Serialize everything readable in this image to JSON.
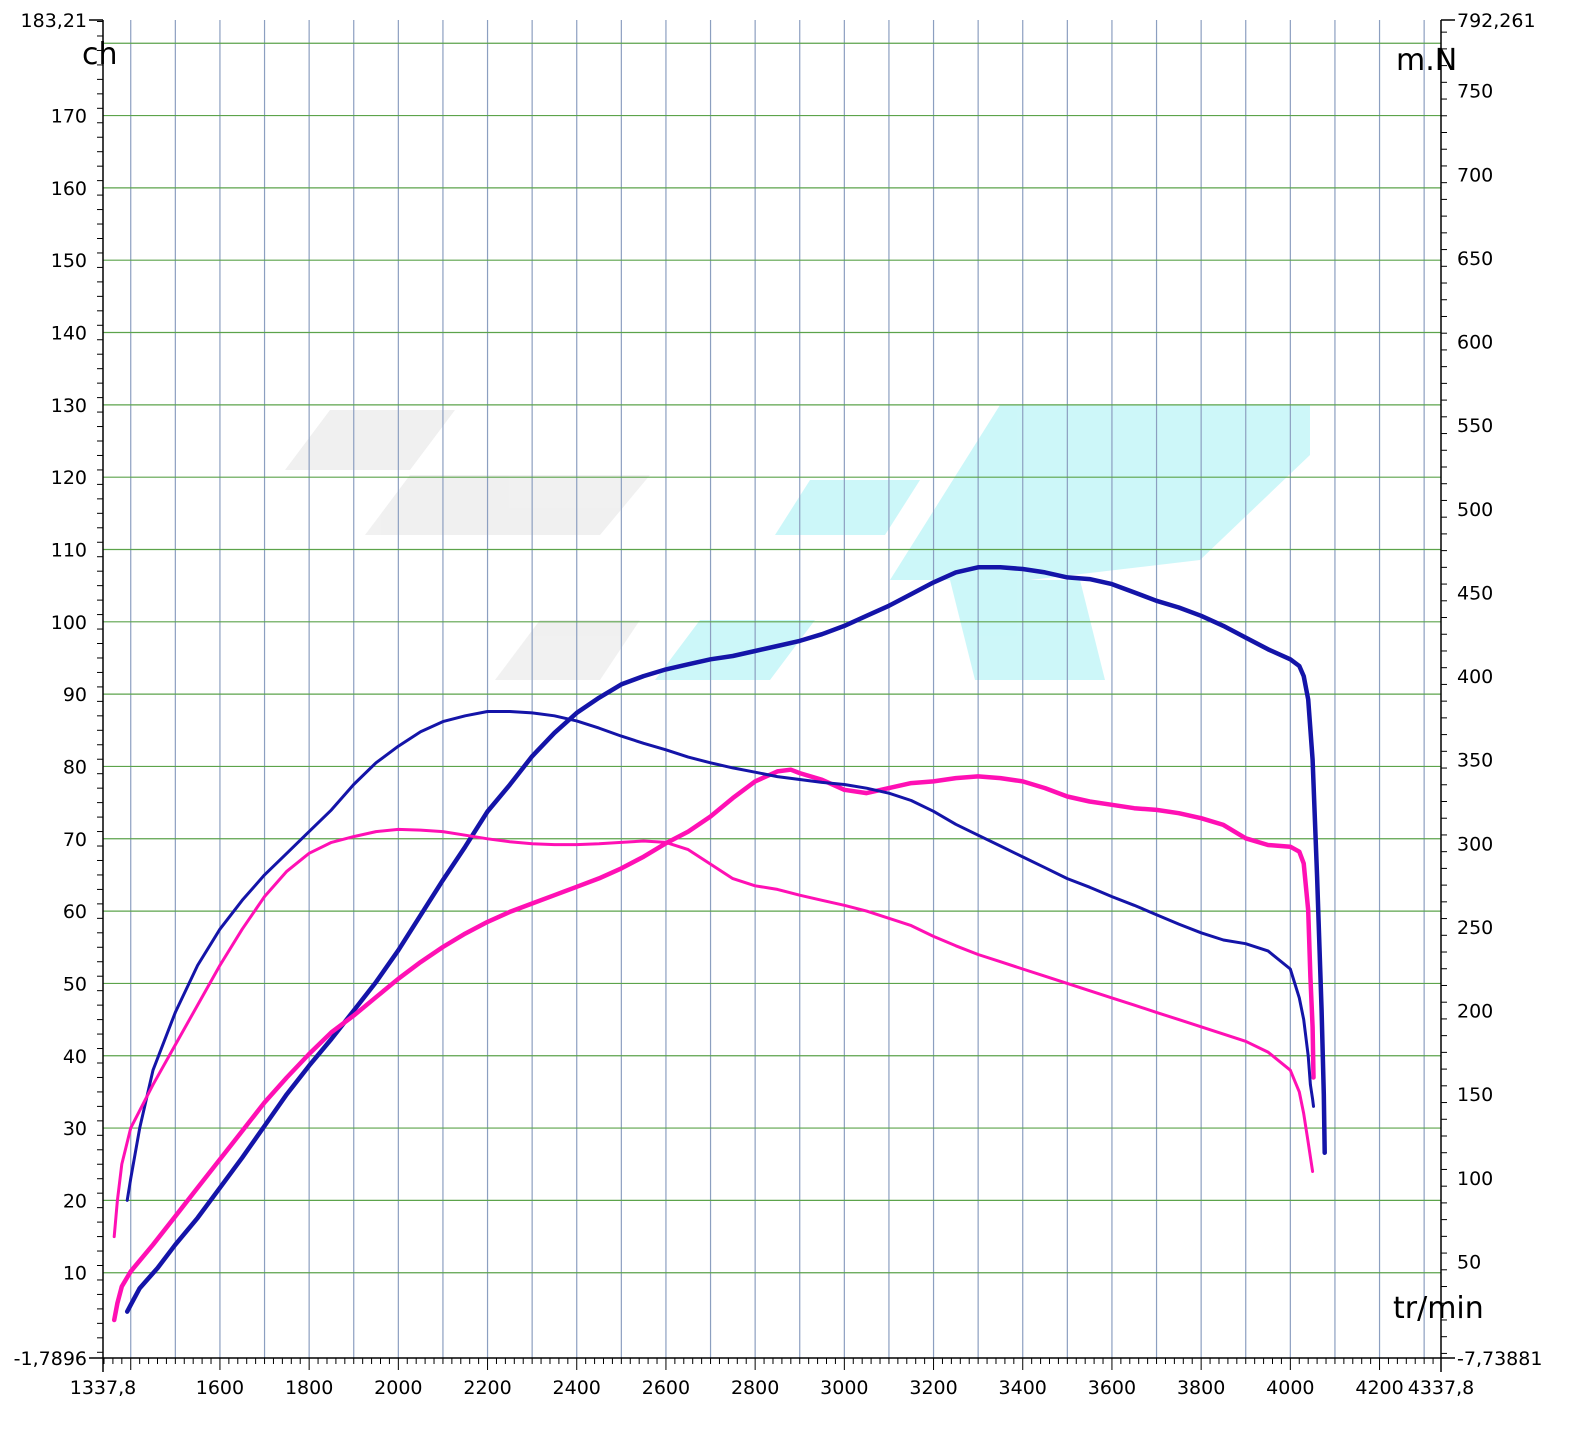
{
  "chart_data": {
    "type": "line",
    "x_axis": {
      "label": "tr/min",
      "min": 1337.8,
      "max": 4337.8,
      "ticks": [
        1600,
        1800,
        2000,
        2200,
        2400,
        2600,
        2800,
        3000,
        3200,
        3400,
        3600,
        3800,
        4000,
        4200
      ],
      "tick_labels": [
        "1337,8",
        "1600",
        "1800",
        "2000",
        "2200",
        "2400",
        "2600",
        "2800",
        "3000",
        "3200",
        "3400",
        "3600",
        "3800",
        "4000",
        "4200",
        "4337,8"
      ]
    },
    "y_left": {
      "label": "ch",
      "min": -1.7896,
      "max": 183.21,
      "ticks": [
        10,
        20,
        30,
        40,
        50,
        60,
        70,
        80,
        90,
        100,
        110,
        120,
        130,
        140,
        150,
        160,
        170,
        180
      ],
      "tick_labels": [
        "-1,7896",
        "10",
        "20",
        "30",
        "40",
        "50",
        "60",
        "70",
        "80",
        "90",
        "100",
        "110",
        "120",
        "130",
        "140",
        "150",
        "160",
        "170",
        "183,21"
      ]
    },
    "y_right": {
      "label": "m.N",
      "min": -7.73881,
      "max": 792.261,
      "ticks": [
        50,
        100,
        150,
        200,
        250,
        300,
        350,
        400,
        450,
        500,
        550,
        600,
        650,
        700,
        750
      ],
      "tick_labels": [
        "-7,73881",
        "50",
        "100",
        "150",
        "200",
        "250",
        "300",
        "350",
        "400",
        "450",
        "500",
        "550",
        "600",
        "650",
        "700",
        "750",
        "792,261"
      ]
    },
    "grid": true,
    "series": [
      {
        "axis": "right",
        "color": "#1414a8",
        "width": 4.5,
        "points": [
          [
            1392,
            20
          ],
          [
            1400,
            24
          ],
          [
            1420,
            34
          ],
          [
            1460,
            46
          ],
          [
            1500,
            60
          ],
          [
            1550,
            76
          ],
          [
            1600,
            94
          ],
          [
            1650,
            112
          ],
          [
            1700,
            131
          ],
          [
            1750,
            150
          ],
          [
            1800,
            167
          ],
          [
            1850,
            183
          ],
          [
            1900,
            200
          ],
          [
            1950,
            217
          ],
          [
            2000,
            236
          ],
          [
            2050,
            257
          ],
          [
            2100,
            278
          ],
          [
            2150,
            298
          ],
          [
            2200,
            319
          ],
          [
            2250,
            335
          ],
          [
            2300,
            352
          ],
          [
            2350,
            366
          ],
          [
            2400,
            378
          ],
          [
            2450,
            387
          ],
          [
            2500,
            395
          ],
          [
            2550,
            400
          ],
          [
            2600,
            404
          ],
          [
            2650,
            407
          ],
          [
            2700,
            410
          ],
          [
            2750,
            412
          ],
          [
            2800,
            415
          ],
          [
            2850,
            418
          ],
          [
            2900,
            421
          ],
          [
            2950,
            425
          ],
          [
            3000,
            430
          ],
          [
            3050,
            436
          ],
          [
            3100,
            442
          ],
          [
            3150,
            449
          ],
          [
            3200,
            456
          ],
          [
            3250,
            462
          ],
          [
            3300,
            465
          ],
          [
            3350,
            465
          ],
          [
            3400,
            464
          ],
          [
            3450,
            462
          ],
          [
            3500,
            459
          ],
          [
            3550,
            458
          ],
          [
            3600,
            455
          ],
          [
            3650,
            450
          ],
          [
            3700,
            445
          ],
          [
            3750,
            441
          ],
          [
            3800,
            436
          ],
          [
            3850,
            430
          ],
          [
            3900,
            423
          ],
          [
            3950,
            416
          ],
          [
            4000,
            410
          ],
          [
            4020,
            406
          ],
          [
            4030,
            400
          ],
          [
            4040,
            386
          ],
          [
            4050,
            350
          ],
          [
            4060,
            280
          ],
          [
            4070,
            200
          ],
          [
            4075,
            150
          ],
          [
            4077,
            115
          ]
        ]
      },
      {
        "axis": "right",
        "color": "#ff10b4",
        "width": 4.5,
        "points": [
          [
            1363,
            15
          ],
          [
            1370,
            25
          ],
          [
            1380,
            35
          ],
          [
            1400,
            44
          ],
          [
            1450,
            60
          ],
          [
            1500,
            77
          ],
          [
            1550,
            94
          ],
          [
            1600,
            111
          ],
          [
            1650,
            128
          ],
          [
            1700,
            145
          ],
          [
            1750,
            160
          ],
          [
            1800,
            174
          ],
          [
            1850,
            187
          ],
          [
            1900,
            197
          ],
          [
            1950,
            208
          ],
          [
            2000,
            219
          ],
          [
            2050,
            229
          ],
          [
            2100,
            238
          ],
          [
            2150,
            246
          ],
          [
            2200,
            253
          ],
          [
            2250,
            259
          ],
          [
            2300,
            264
          ],
          [
            2350,
            269
          ],
          [
            2400,
            274
          ],
          [
            2450,
            279
          ],
          [
            2500,
            285
          ],
          [
            2550,
            292
          ],
          [
            2600,
            300
          ],
          [
            2650,
            307
          ],
          [
            2700,
            316
          ],
          [
            2750,
            327
          ],
          [
            2800,
            337
          ],
          [
            2850,
            343
          ],
          [
            2880,
            344
          ],
          [
            2900,
            342
          ],
          [
            2950,
            338
          ],
          [
            3000,
            332
          ],
          [
            3050,
            330
          ],
          [
            3100,
            333
          ],
          [
            3150,
            336
          ],
          [
            3200,
            337
          ],
          [
            3250,
            339
          ],
          [
            3300,
            340
          ],
          [
            3350,
            339
          ],
          [
            3400,
            337
          ],
          [
            3450,
            333
          ],
          [
            3500,
            328
          ],
          [
            3550,
            325
          ],
          [
            3600,
            323
          ],
          [
            3650,
            321
          ],
          [
            3700,
            320
          ],
          [
            3750,
            318
          ],
          [
            3800,
            315
          ],
          [
            3850,
            311
          ],
          [
            3900,
            303
          ],
          [
            3950,
            299
          ],
          [
            4000,
            298
          ],
          [
            4020,
            295
          ],
          [
            4030,
            288
          ],
          [
            4040,
            260
          ],
          [
            4045,
            220
          ],
          [
            4050,
            190
          ],
          [
            4052,
            160
          ]
        ]
      },
      {
        "axis": "left",
        "color": "#1414a8",
        "width": 3,
        "points": [
          [
            1392,
            20
          ],
          [
            1400,
            23
          ],
          [
            1420,
            30
          ],
          [
            1450,
            38
          ],
          [
            1500,
            46
          ],
          [
            1550,
            52.5
          ],
          [
            1600,
            57.5
          ],
          [
            1650,
            61.5
          ],
          [
            1700,
            65
          ],
          [
            1750,
            68
          ],
          [
            1800,
            71
          ],
          [
            1850,
            74
          ],
          [
            1900,
            77.5
          ],
          [
            1950,
            80.5
          ],
          [
            2000,
            82.8
          ],
          [
            2050,
            84.8
          ],
          [
            2100,
            86.2
          ],
          [
            2150,
            87
          ],
          [
            2200,
            87.6
          ],
          [
            2250,
            87.6
          ],
          [
            2300,
            87.4
          ],
          [
            2350,
            87
          ],
          [
            2400,
            86.3
          ],
          [
            2450,
            85.3
          ],
          [
            2500,
            84.2
          ],
          [
            2550,
            83.2
          ],
          [
            2600,
            82.3
          ],
          [
            2650,
            81.3
          ],
          [
            2700,
            80.5
          ],
          [
            2750,
            79.8
          ],
          [
            2800,
            79.2
          ],
          [
            2850,
            78.6
          ],
          [
            2900,
            78.2
          ],
          [
            2950,
            77.8
          ],
          [
            3000,
            77.5
          ],
          [
            3050,
            77
          ],
          [
            3100,
            76.3
          ],
          [
            3150,
            75.3
          ],
          [
            3200,
            73.8
          ],
          [
            3250,
            72
          ],
          [
            3300,
            70.5
          ],
          [
            3350,
            69
          ],
          [
            3400,
            67.5
          ],
          [
            3450,
            66
          ],
          [
            3500,
            64.5
          ],
          [
            3550,
            63.3
          ],
          [
            3600,
            62
          ],
          [
            3650,
            60.8
          ],
          [
            3700,
            59.5
          ],
          [
            3750,
            58.2
          ],
          [
            3800,
            57
          ],
          [
            3850,
            56
          ],
          [
            3900,
            55.5
          ],
          [
            3950,
            54.5
          ],
          [
            4000,
            52
          ],
          [
            4020,
            48
          ],
          [
            4030,
            45
          ],
          [
            4040,
            40
          ],
          [
            4045,
            36
          ],
          [
            4050,
            34
          ],
          [
            4052,
            33
          ]
        ]
      },
      {
        "axis": "left",
        "color": "#ff10b4",
        "width": 3,
        "points": [
          [
            1363,
            15
          ],
          [
            1370,
            20
          ],
          [
            1380,
            25
          ],
          [
            1400,
            30
          ],
          [
            1450,
            36
          ],
          [
            1500,
            41.5
          ],
          [
            1550,
            47
          ],
          [
            1600,
            52.5
          ],
          [
            1650,
            57.5
          ],
          [
            1700,
            62
          ],
          [
            1750,
            65.5
          ],
          [
            1800,
            68
          ],
          [
            1850,
            69.5
          ],
          [
            1900,
            70.3
          ],
          [
            1950,
            71
          ],
          [
            2000,
            71.3
          ],
          [
            2050,
            71.2
          ],
          [
            2100,
            71
          ],
          [
            2150,
            70.5
          ],
          [
            2200,
            70
          ],
          [
            2250,
            69.6
          ],
          [
            2300,
            69.3
          ],
          [
            2350,
            69.2
          ],
          [
            2400,
            69.2
          ],
          [
            2450,
            69.3
          ],
          [
            2500,
            69.5
          ],
          [
            2550,
            69.7
          ],
          [
            2600,
            69.5
          ],
          [
            2650,
            68.5
          ],
          [
            2700,
            66.5
          ],
          [
            2750,
            64.5
          ],
          [
            2800,
            63.5
          ],
          [
            2850,
            63
          ],
          [
            2900,
            62.2
          ],
          [
            2950,
            61.5
          ],
          [
            3000,
            60.8
          ],
          [
            3050,
            60
          ],
          [
            3100,
            59
          ],
          [
            3150,
            58
          ],
          [
            3200,
            56.5
          ],
          [
            3250,
            55.2
          ],
          [
            3300,
            54
          ],
          [
            3350,
            53
          ],
          [
            3400,
            52
          ],
          [
            3450,
            51
          ],
          [
            3500,
            50
          ],
          [
            3550,
            49
          ],
          [
            3600,
            48
          ],
          [
            3650,
            47
          ],
          [
            3700,
            46
          ],
          [
            3750,
            45
          ],
          [
            3800,
            44
          ],
          [
            3850,
            43
          ],
          [
            3900,
            42
          ],
          [
            3950,
            40.5
          ],
          [
            4000,
            38
          ],
          [
            4020,
            35
          ],
          [
            4030,
            32
          ],
          [
            4040,
            28
          ],
          [
            4050,
            24
          ]
        ]
      }
    ],
    "watermark": {
      "present": true,
      "colors": [
        "#e8e8e8",
        "#c0f5f7"
      ]
    }
  }
}
